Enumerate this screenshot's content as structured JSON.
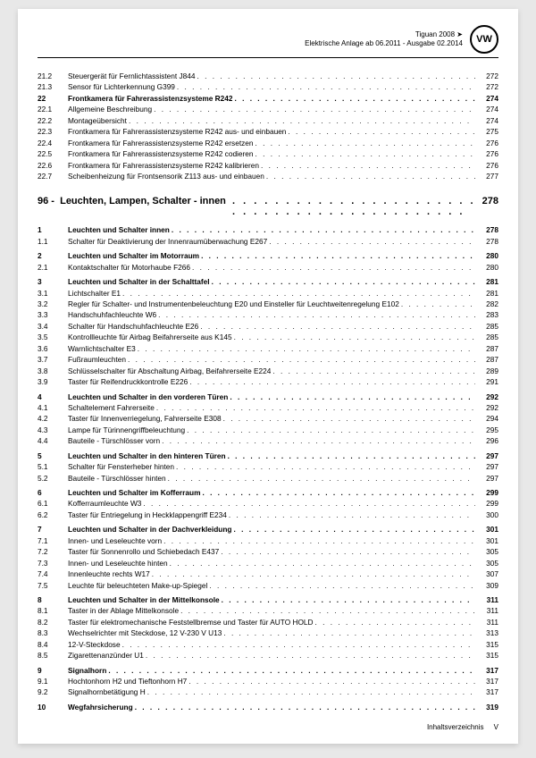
{
  "header": {
    "line1": "Tiguan 2008 ➤",
    "line2": "Elektrische Anlage ab 06.2011 - Ausgabe 02.2014",
    "logo": "VW"
  },
  "top_entries": [
    {
      "n": "21.2",
      "t": "Steuergerät für Fernlichtassistent J844",
      "p": "272",
      "b": false
    },
    {
      "n": "21.3",
      "t": "Sensor für Lichterkennung G399",
      "p": "272",
      "b": false
    },
    {
      "n": "22",
      "t": "Frontkamera für Fahrerassistenzsysteme R242",
      "p": "274",
      "b": true
    },
    {
      "n": "22.1",
      "t": "Allgemeine Beschreibung",
      "p": "274",
      "b": false
    },
    {
      "n": "22.2",
      "t": "Montageübersicht",
      "p": "274",
      "b": false
    },
    {
      "n": "22.3",
      "t": "Frontkamera für Fahrerassistenzsysteme R242 aus- und einbauen",
      "p": "275",
      "b": false
    },
    {
      "n": "22.4",
      "t": "Frontkamera für Fahrerassistenzsysteme R242 ersetzen",
      "p": "276",
      "b": false
    },
    {
      "n": "22.5",
      "t": "Frontkamera für Fahrerassistenzsysteme R242 codieren",
      "p": "276",
      "b": false
    },
    {
      "n": "22.6",
      "t": "Frontkamera für Fahrerassistenzsysteme R242 kalibrieren",
      "p": "276",
      "b": false
    },
    {
      "n": "22.7",
      "t": "Scheibenheizung für Frontsensorik Z113 aus- und einbauen",
      "p": "277",
      "b": false
    }
  ],
  "section": {
    "num": "96 -",
    "title": "Leuchten, Lampen, Schalter - innen",
    "page": "278"
  },
  "entries": [
    {
      "n": "1",
      "t": "Leuchten und Schalter innen",
      "p": "278",
      "b": true
    },
    {
      "n": "1.1",
      "t": "Schalter für Deaktivierung der Innenraumüberwachung E267",
      "p": "278",
      "b": false
    },
    {
      "n": "2",
      "t": "Leuchten und Schalter im Motorraum",
      "p": "280",
      "b": true
    },
    {
      "n": "2.1",
      "t": "Kontaktschalter für Motorhaube F266",
      "p": "280",
      "b": false
    },
    {
      "n": "3",
      "t": "Leuchten und Schalter in der Schalttafel",
      "p": "281",
      "b": true
    },
    {
      "n": "3.1",
      "t": "Lichtschalter E1",
      "p": "281",
      "b": false
    },
    {
      "n": "3.2",
      "t": "Regler für Schalter- und Instrumentenbeleuchtung E20 und Einsteller für Leuchtweitenregelung E102",
      "p": "282",
      "b": false,
      "wrap": true
    },
    {
      "n": "3.3",
      "t": "Handschuhfachleuchte W6",
      "p": "283",
      "b": false
    },
    {
      "n": "3.4",
      "t": "Schalter für Handschuhfachleuchte E26",
      "p": "285",
      "b": false
    },
    {
      "n": "3.5",
      "t": "Kontrollleuchte für Airbag Beifahrerseite aus K145",
      "p": "285",
      "b": false
    },
    {
      "n": "3.6",
      "t": "Warnlichtschalter E3",
      "p": "287",
      "b": false
    },
    {
      "n": "3.7",
      "t": "Fußraumleuchten",
      "p": "287",
      "b": false
    },
    {
      "n": "3.8",
      "t": "Schlüsselschalter für Abschaltung Airbag, Beifahrerseite E224",
      "p": "289",
      "b": false
    },
    {
      "n": "3.9",
      "t": "Taster für Reifendruckkontrolle E226",
      "p": "291",
      "b": false
    },
    {
      "n": "4",
      "t": "Leuchten und Schalter in den vorderen Türen",
      "p": "292",
      "b": true
    },
    {
      "n": "4.1",
      "t": "Schaltelement Fahrerseite",
      "p": "292",
      "b": false
    },
    {
      "n": "4.2",
      "t": "Taster für Innenverriegelung, Fahrerseite E308",
      "p": "294",
      "b": false
    },
    {
      "n": "4.3",
      "t": "Lampe für Türinnengriffbeleuchtung",
      "p": "295",
      "b": false
    },
    {
      "n": "4.4",
      "t": "Bauteile - Türschlösser vorn",
      "p": "296",
      "b": false
    },
    {
      "n": "5",
      "t": "Leuchten und Schalter in den hinteren Türen",
      "p": "297",
      "b": true
    },
    {
      "n": "5.1",
      "t": "Schalter für Fensterheber hinten",
      "p": "297",
      "b": false
    },
    {
      "n": "5.2",
      "t": "Bauteile - Türschlösser hinten",
      "p": "297",
      "b": false
    },
    {
      "n": "6",
      "t": "Leuchten und Schalter im Kofferraum",
      "p": "299",
      "b": true
    },
    {
      "n": "6.1",
      "t": "Kofferraumleuchte W3",
      "p": "299",
      "b": false
    },
    {
      "n": "6.2",
      "t": "Taster für Entriegelung in Heckklappengriff E234",
      "p": "300",
      "b": false
    },
    {
      "n": "7",
      "t": "Leuchten und Schalter in der Dachverkleidung",
      "p": "301",
      "b": true
    },
    {
      "n": "7.1",
      "t": "Innen- und Leseleuchte vorn",
      "p": "301",
      "b": false
    },
    {
      "n": "7.2",
      "t": "Taster für Sonnenrollo und Schiebedach E437",
      "p": "305",
      "b": false
    },
    {
      "n": "7.3",
      "t": "Innen- und Leseleuchte hinten",
      "p": "305",
      "b": false
    },
    {
      "n": "7.4",
      "t": "Innenleuchte rechts W17",
      "p": "307",
      "b": false
    },
    {
      "n": "7.5",
      "t": "Leuchte für beleuchteten Make-up-Spiegel",
      "p": "309",
      "b": false
    },
    {
      "n": "8",
      "t": "Leuchten und Schalter in der Mittelkonsole",
      "p": "311",
      "b": true
    },
    {
      "n": "8.1",
      "t": "Taster in der Ablage Mittelkonsole",
      "p": "311",
      "b": false
    },
    {
      "n": "8.2",
      "t": "Taster für elektromechanische Feststellbremse und Taster für AUTO HOLD",
      "p": "311",
      "b": false
    },
    {
      "n": "8.3",
      "t": "Wechselrichter mit Steckdose, 12 V-230 V U13",
      "p": "313",
      "b": false
    },
    {
      "n": "8.4",
      "t": "12-V-Steckdose",
      "p": "315",
      "b": false
    },
    {
      "n": "8.5",
      "t": "Zigarettenanzünder U1",
      "p": "315",
      "b": false
    },
    {
      "n": "9",
      "t": "Signalhorn",
      "p": "317",
      "b": true
    },
    {
      "n": "9.1",
      "t": "Hochtonhorn H2 und Tieftonhorn H7",
      "p": "317",
      "b": false
    },
    {
      "n": "9.2",
      "t": "Signalhornbetätigung H",
      "p": "317",
      "b": false
    },
    {
      "n": "10",
      "t": "Wegfahrsicherung",
      "p": "319",
      "b": true
    }
  ],
  "footer": {
    "label": "Inhaltsverzeichnis",
    "page": "V"
  }
}
